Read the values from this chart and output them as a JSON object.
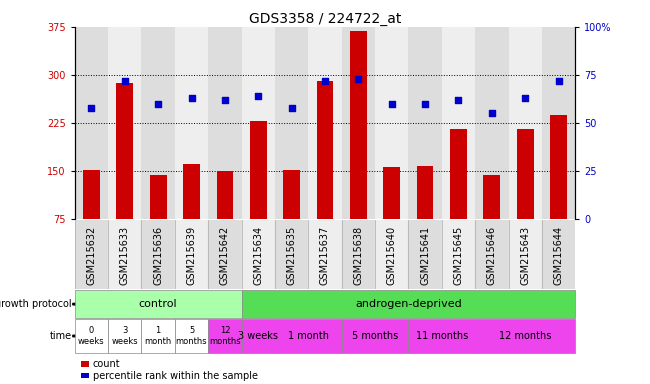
{
  "title": "GDS3358 / 224722_at",
  "samples": [
    "GSM215632",
    "GSM215633",
    "GSM215636",
    "GSM215639",
    "GSM215642",
    "GSM215634",
    "GSM215635",
    "GSM215637",
    "GSM215638",
    "GSM215640",
    "GSM215641",
    "GSM215645",
    "GSM215646",
    "GSM215643",
    "GSM215644"
  ],
  "count_values": [
    152,
    287,
    144,
    160,
    150,
    228,
    152,
    291,
    368,
    156,
    157,
    216,
    144,
    215,
    237
  ],
  "percentile_values": [
    58,
    72,
    60,
    63,
    62,
    64,
    58,
    72,
    73,
    60,
    60,
    62,
    55,
    63,
    72
  ],
  "ylim_left": [
    75,
    375
  ],
  "ylim_right": [
    0,
    100
  ],
  "yticks_left": [
    75,
    150,
    225,
    300,
    375
  ],
  "yticks_right": [
    0,
    25,
    50,
    75,
    100
  ],
  "bar_color": "#cc0000",
  "dot_color": "#0000cc",
  "bg_color": "#ffffff",
  "control_color": "#aaffaa",
  "androgen_color": "#55dd55",
  "time_bg_ctrl": "#ffffff",
  "time_bg_last_ctrl": "#ee44ee",
  "time_bg_androgen": "#ee44ee",
  "control_label": "control",
  "androgen_label": "androgen-deprived",
  "time_control_labels": [
    "0\nweeks",
    "3\nweeks",
    "1\nmonth",
    "5\nmonths",
    "12\nmonths"
  ],
  "time_androgen_labels": [
    "3 weeks",
    "1 month",
    "5 months",
    "11 months",
    "12 months"
  ],
  "n_control": 5,
  "n_androgen": 10,
  "androgen_group_counts": [
    1,
    2,
    2,
    2,
    3
  ],
  "axis_color_left": "#cc0000",
  "axis_color_right": "#0000cc",
  "tick_fontsize": 7,
  "label_fontsize": 8,
  "xlabel_col_bg_odd": "#dddddd",
  "xlabel_col_bg_even": "#eeeeee"
}
